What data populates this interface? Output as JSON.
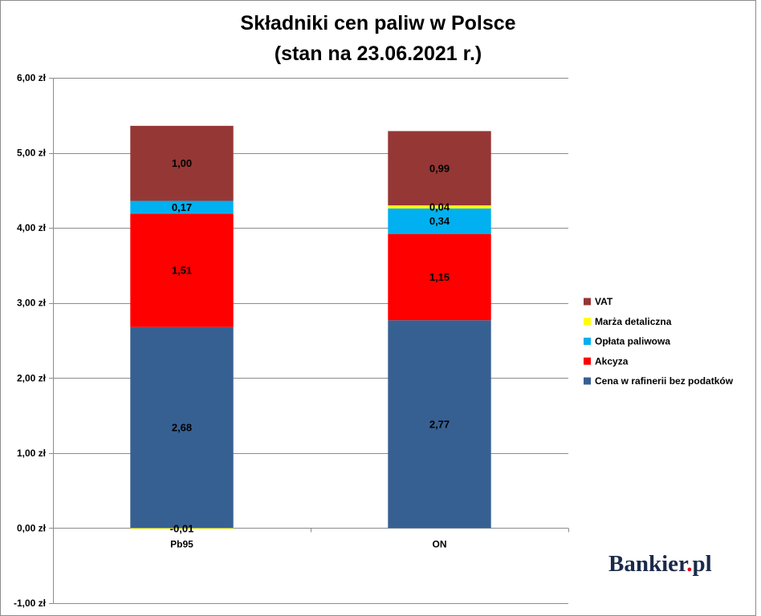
{
  "chart_data": {
    "type": "bar",
    "stacked": true,
    "title": "Składniki cen paliw w Polsce",
    "subtitle": "(stan na 23.06.2021 r.)",
    "ylim": [
      -1,
      6
    ],
    "yticks": [
      {
        "value": 6,
        "label": "6,00 zł"
      },
      {
        "value": 5,
        "label": "5,00 zł"
      },
      {
        "value": 4,
        "label": "4,00 zł"
      },
      {
        "value": 3,
        "label": "3,00 zł"
      },
      {
        "value": 2,
        "label": "2,00 zł"
      },
      {
        "value": 1,
        "label": "1,00 zł"
      },
      {
        "value": 0,
        "label": "0,00 zł"
      },
      {
        "value": -1,
        "label": "-1,00 zł"
      }
    ],
    "grid": true,
    "legend": "right",
    "categories": [
      "Pb95",
      "ON"
    ],
    "series": [
      {
        "name": "Cena w rafinerii bez podatków",
        "color": "#376092",
        "values": [
          2.68,
          2.77
        ],
        "labels": [
          "2,68",
          "2,77"
        ]
      },
      {
        "name": "Akcyza",
        "color": "#FF0000",
        "values": [
          1.51,
          1.15
        ],
        "labels": [
          "1,51",
          "1,15"
        ]
      },
      {
        "name": "Opłata paliwowa",
        "color": "#00B0F0",
        "values": [
          0.17,
          0.34
        ],
        "labels": [
          "0,17",
          "0,34"
        ]
      },
      {
        "name": "Marża detaliczna",
        "color": "#FFFF00",
        "values": [
          -0.01,
          0.04
        ],
        "labels": [
          "-0,01",
          "0,04"
        ]
      },
      {
        "name": "VAT",
        "color": "#953735",
        "values": [
          1.0,
          0.99
        ],
        "labels": [
          "1,00",
          "0,99"
        ]
      }
    ]
  },
  "branding": {
    "logo_name": "Bankier",
    "logo_dot": ".",
    "logo_tld": "pl",
    "logo_color": "#1B2A4A",
    "dot_color": "#E2001A"
  }
}
